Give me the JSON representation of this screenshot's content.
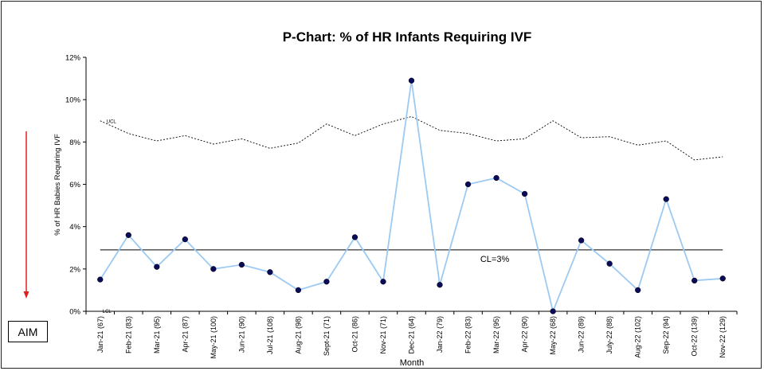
{
  "chart_data": {
    "type": "line",
    "title": "P-Chart: % of HR Infants Requiring IVF",
    "xlabel": "Month",
    "ylabel": "% of HR Babies Requiring IVF",
    "ylim": [
      0,
      12
    ],
    "ytick_labels": [
      "0%",
      "2%",
      "4%",
      "6%",
      "8%",
      "10%",
      "12%"
    ],
    "categories": [
      "Jan-21 (67)",
      "Feb-21 (83)",
      "Mar-21 (95)",
      "Apr-21 (87)",
      "May-21 (100)",
      "Jun-21 (90)",
      "Jul-21 (108)",
      "Aug-21 (98)",
      "Sept-21 (71)",
      "Oct-21 (86)",
      "Nov-21 (71)",
      "Dec-21 (64)",
      "Jan-22 (79)",
      "Feb-22 (83)",
      "Mar-22 (95)",
      "Apr-22 (90)",
      "May-22 (68)",
      "Jun-22 (89)",
      "July-22 (88)",
      "Aug-22 (102)",
      "Sep-22 (94)",
      "Oct-22 (139)",
      "Nov-22 (129)"
    ],
    "series": [
      {
        "values": [
          1.5,
          3.6,
          2.1,
          3.4,
          2.0,
          2.2,
          1.85,
          1.0,
          1.4,
          3.5,
          1.4,
          10.9,
          1.25,
          6.0,
          6.3,
          5.55,
          0.0,
          3.35,
          2.25,
          1.0,
          5.3,
          1.45,
          1.55
        ]
      },
      {
        "name": "UCL",
        "values": [
          9.0,
          8.4,
          8.05,
          8.3,
          7.9,
          8.15,
          7.7,
          7.95,
          8.85,
          8.3,
          8.85,
          9.2,
          8.55,
          8.4,
          8.05,
          8.15,
          9.0,
          8.2,
          8.25,
          7.85,
          8.05,
          7.15,
          7.3
        ]
      }
    ],
    "center_line": {
      "label": "CL=3%",
      "value": 2.9
    },
    "lower_limit": {
      "label": "LCL",
      "value": 0
    },
    "upper_limit_label": "UCL",
    "grid": false,
    "legend": "none",
    "colors": {
      "data_line": "#9ccaf2",
      "marker": "#0b0b5c",
      "limit_line": "#000000",
      "aim_arrow": "#e02020"
    }
  },
  "aim": {
    "label": "AIM"
  }
}
